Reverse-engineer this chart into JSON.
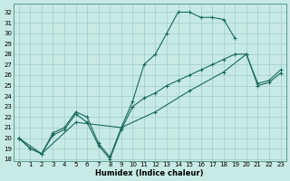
{
  "background_color": "#c8eae4",
  "grid_color": "#a0ccc6",
  "line_color": "#1a6b5a",
  "xlabel": "Humidex (Indice chaleur)",
  "xlim": [
    -0.5,
    23.5
  ],
  "ylim": [
    17.8,
    32.8
  ],
  "yticks": [
    18,
    19,
    20,
    21,
    22,
    23,
    24,
    25,
    26,
    27,
    28,
    29,
    30,
    31,
    32
  ],
  "xticks": [
    0,
    1,
    2,
    3,
    4,
    5,
    6,
    7,
    8,
    9,
    10,
    11,
    12,
    13,
    14,
    15,
    16,
    17,
    18,
    19,
    20,
    21,
    22,
    23
  ],
  "curve1_x": [
    0,
    1,
    2,
    3,
    4,
    5,
    6,
    7,
    8,
    9,
    10,
    11,
    12,
    13,
    14,
    15,
    16,
    17,
    18,
    19
  ],
  "curve1_y": [
    20.0,
    19.0,
    18.5,
    20.5,
    21.0,
    22.5,
    22.0,
    19.5,
    18.2,
    21.0,
    23.5,
    27.0,
    28.0,
    30.0,
    32.0,
    32.0,
    31.5,
    31.5,
    31.3,
    29.5
  ],
  "curve2_x": [
    0,
    1,
    2,
    3,
    4,
    5,
    6,
    7,
    8,
    9,
    10,
    11,
    12,
    13,
    14,
    15,
    16,
    17,
    18,
    19,
    20,
    21,
    22,
    23
  ],
  "curve2_y": [
    20.0,
    19.0,
    18.5,
    20.3,
    20.8,
    22.3,
    21.5,
    19.3,
    18.0,
    20.8,
    23.0,
    23.8,
    24.3,
    25.0,
    25.5,
    26.0,
    26.5,
    27.0,
    27.5,
    28.0,
    28.0,
    25.0,
    25.3,
    26.2
  ],
  "curve3_x": [
    0,
    2,
    5,
    9,
    12,
    15,
    18,
    20,
    21,
    22,
    23
  ],
  "curve3_y": [
    20.0,
    18.5,
    21.5,
    21.0,
    22.5,
    24.5,
    26.3,
    28.0,
    25.2,
    25.5,
    26.5
  ]
}
